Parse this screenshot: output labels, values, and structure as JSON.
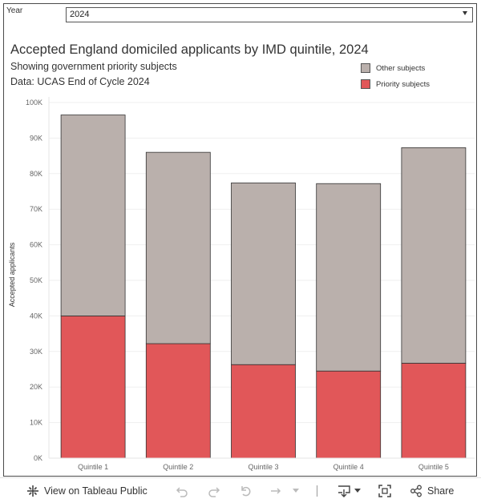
{
  "filter": {
    "label": "Year",
    "value": "2024"
  },
  "header": {
    "title": "Accepted England domiciled applicants by IMD quintile, 2024",
    "subtitle": "Showing government priority subjects",
    "source": "Data: UCAS End of Cycle 2024"
  },
  "legend": [
    {
      "label": "Other subjects",
      "color": "#bab0ac"
    },
    {
      "label": "Priority subjects",
      "color": "#e15759"
    }
  ],
  "chart_data": {
    "type": "bar",
    "stacked": true,
    "title": "Accepted England domiciled applicants by IMD quintile, 2024",
    "categories": [
      "Quintile 1",
      "Quintile 2",
      "Quintile 3",
      "Quintile 4",
      "Quintile 5"
    ],
    "series": [
      {
        "name": "Priority subjects",
        "color": "#e15759",
        "values": [
          40000,
          32200,
          26300,
          24500,
          26700
        ]
      },
      {
        "name": "Other subjects",
        "color": "#bab0ac",
        "values": [
          56500,
          53800,
          51100,
          52700,
          60600
        ]
      }
    ],
    "ylabel": "Accepted applicants",
    "xlabel": "",
    "ylim": [
      0,
      100000
    ],
    "yticks": [
      0,
      10000,
      20000,
      30000,
      40000,
      50000,
      60000,
      70000,
      80000,
      90000,
      100000
    ],
    "ytick_labels": [
      "0K",
      "10K",
      "20K",
      "30K",
      "40K",
      "50K",
      "60K",
      "70K",
      "80K",
      "90K",
      "100K"
    ],
    "grid": true,
    "legend_position": "top-right"
  },
  "toolbar": {
    "view_label": "View on Tableau Public",
    "share_label": "Share"
  }
}
